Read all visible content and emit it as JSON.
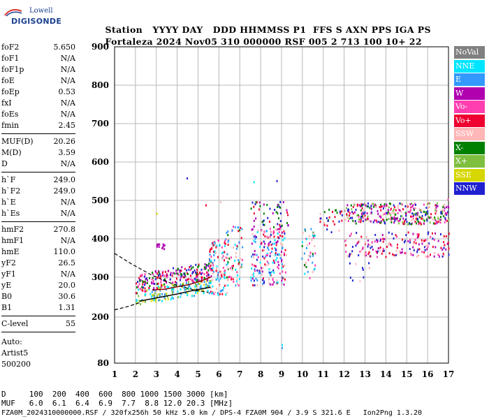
{
  "logo": {
    "line1": "Lowell",
    "line2": "DIGISONDE"
  },
  "header": {
    "row1": [
      "Station",
      "YYYY DAY",
      "DDD",
      "HHMMSS",
      "P1",
      "FFS",
      "S",
      "AXN",
      "PPS",
      "IGA",
      "PS"
    ],
    "row2": [
      "Fortaleza",
      "2024 Nov05",
      "310",
      "000000",
      "RSF",
      "005",
      "2",
      "713",
      "100",
      "10+",
      "22"
    ]
  },
  "params": {
    "group1": [
      {
        "name": "foF2",
        "value": "5.650"
      },
      {
        "name": "foF1",
        "value": "N/A"
      },
      {
        "name": "foF1p",
        "value": "N/A"
      },
      {
        "name": "foE",
        "value": "N/A"
      },
      {
        "name": "foEp",
        "value": "0.53"
      },
      {
        "name": "fxI",
        "value": "N/A"
      },
      {
        "name": "foEs",
        "value": "N/A"
      },
      {
        "name": "fmin",
        "value": "2.45"
      }
    ],
    "group2": [
      {
        "name": "MUF(D)",
        "value": "20.26"
      },
      {
        "name": "M(D)",
        "value": "3.59"
      },
      {
        "name": "D",
        "value": "N/A"
      }
    ],
    "group3": [
      {
        "name": "h`F",
        "value": "249.0"
      },
      {
        "name": "h`F2",
        "value": "249.0"
      },
      {
        "name": "h`E",
        "value": "N/A"
      },
      {
        "name": "h`Es",
        "value": "N/A"
      }
    ],
    "group4": [
      {
        "name": "hmF2",
        "value": "270.8"
      },
      {
        "name": "hmF1",
        "value": "N/A"
      },
      {
        "name": "hmE",
        "value": "110.0"
      },
      {
        "name": "yF2",
        "value": "26.5"
      },
      {
        "name": "yF1",
        "value": "N/A"
      },
      {
        "name": "yE",
        "value": "20.0"
      },
      {
        "name": "B0",
        "value": "30.6"
      },
      {
        "name": "B1",
        "value": "1.31"
      }
    ],
    "group5": [
      {
        "name": "C-level",
        "value": "55"
      }
    ],
    "auto": [
      "Auto:",
      "Artist5",
      "500200"
    ]
  },
  "legend": [
    {
      "label": "NoVal",
      "color": "#808080"
    },
    {
      "label": "NNE",
      "color": "#00e5ff"
    },
    {
      "label": "E",
      "color": "#3399ff"
    },
    {
      "label": "W",
      "color": "#b000b0"
    },
    {
      "label": "Vo-",
      "color": "#ff3fb0"
    },
    {
      "label": "Vo+",
      "color": "#ee0030"
    },
    {
      "label": "SSW",
      "color": "#ffb6b6"
    },
    {
      "label": "X-",
      "color": "#008000"
    },
    {
      "label": "X+",
      "color": "#7fbf3f"
    },
    {
      "label": "SSE",
      "color": "#d6d600"
    },
    {
      "label": "NNW",
      "color": "#2020d0"
    }
  ],
  "chart_data": {
    "type": "scatter",
    "xlim": [
      1,
      17
    ],
    "ylim": [
      80,
      900
    ],
    "x_ticks": [
      1,
      2,
      3,
      4,
      5,
      6,
      7,
      8,
      9,
      10,
      11,
      12,
      13,
      14,
      15,
      16,
      17
    ],
    "y_ticks": [
      80,
      200,
      300,
      400,
      500,
      600,
      700,
      800,
      900
    ],
    "grid": true,
    "clusters": [
      {
        "fmin": 2.0,
        "fmax": 5.6,
        "hmin": 232,
        "hmax": 272,
        "colors": [
          "SSE",
          "E",
          "NNE",
          "X+"
        ],
        "n": 160,
        "rise": 30
      },
      {
        "fmin": 2.0,
        "fmax": 5.7,
        "hmin": 262,
        "hmax": 310,
        "colors": [
          "Vo+",
          "Vo-",
          "X-",
          "W",
          "NNW"
        ],
        "n": 210,
        "rise": 35
      },
      {
        "fmin": 5.5,
        "fmax": 6.4,
        "hmin": 258,
        "hmax": 400,
        "colors": [
          "Vo+",
          "Vo-",
          "SSW",
          "NNE",
          "E"
        ],
        "n": 110,
        "rise": 0
      },
      {
        "fmin": 6.3,
        "fmax": 7.1,
        "hmin": 280,
        "hmax": 440,
        "colors": [
          "Vo+",
          "SSW",
          "E",
          "NNE",
          "Vo-",
          "X-"
        ],
        "n": 70,
        "rise": 0
      },
      {
        "fmin": 7.5,
        "fmax": 9.2,
        "hmin": 282,
        "hmax": 430,
        "colors": [
          "SSW",
          "Vo+",
          "E",
          "NNE",
          "Vo-",
          "W",
          "NNW"
        ],
        "n": 200,
        "rise": 0
      },
      {
        "fmin": 7.5,
        "fmax": 9.3,
        "hmin": 430,
        "hmax": 500,
        "colors": [
          "NNW",
          "Vo+",
          "W",
          "X-"
        ],
        "n": 50,
        "rise": 0
      },
      {
        "fmin": 9.9,
        "fmax": 10.6,
        "hmin": 300,
        "hmax": 430,
        "colors": [
          "SSW",
          "X-",
          "E",
          "NNE",
          "Vo-"
        ],
        "n": 45,
        "rise": 0
      },
      {
        "fmin": 10.7,
        "fmax": 11.9,
        "hmin": 415,
        "hmax": 480,
        "colors": [
          "NNW",
          "Vo+",
          "SSW",
          "X-"
        ],
        "n": 30,
        "rise": 0
      },
      {
        "fmin": 12.0,
        "fmax": 17.0,
        "hmin": 440,
        "hmax": 495,
        "colors": [
          "X-",
          "X+",
          "Vo+",
          "Vo-",
          "SSW",
          "W",
          "NNW"
        ],
        "n": 340,
        "rise": 0
      },
      {
        "fmin": 12.0,
        "fmax": 17.0,
        "hmin": 355,
        "hmax": 420,
        "colors": [
          "NNW",
          "Vo-",
          "SSW",
          "W",
          "Vo+"
        ],
        "n": 180,
        "rise": 0
      },
      {
        "fmin": 3.0,
        "fmax": 3.4,
        "hmin": 375,
        "hmax": 390,
        "colors": [
          "W"
        ],
        "n": 14,
        "rise": 0
      },
      {
        "fmin": 12.2,
        "fmax": 13.2,
        "hmin": 290,
        "hmax": 340,
        "colors": [
          "NNW",
          "SSW"
        ],
        "n": 10,
        "rise": 0
      }
    ],
    "outliers": [
      {
        "f": 4.45,
        "h": 560,
        "c": "NNW"
      },
      {
        "f": 7.65,
        "h": 550,
        "c": "NNE"
      },
      {
        "f": 8.75,
        "h": 553,
        "c": "NNW"
      },
      {
        "f": 3.0,
        "h": 468,
        "c": "SSE"
      },
      {
        "f": 5.35,
        "h": 490,
        "c": "Vo+"
      },
      {
        "f": 6.05,
        "h": 498,
        "c": "SSW"
      },
      {
        "f": 9.0,
        "h": 130,
        "c": "NNE"
      },
      {
        "f": 9.0,
        "h": 122,
        "c": "E"
      },
      {
        "f": 16.95,
        "h": 505,
        "c": "Vo-"
      },
      {
        "f": 9.05,
        "h": 300,
        "c": "NoVal"
      }
    ],
    "trace_solid": {
      "f": [
        2.2,
        2.8,
        3.4,
        4.0,
        4.6,
        5.2,
        5.6
      ],
      "h": [
        240,
        246,
        252,
        258,
        265,
        271,
        275
      ]
    },
    "trace_dashed_upper": {
      "f": [
        1.0,
        1.8,
        2.8,
        3.8,
        4.8,
        5.5
      ],
      "h": [
        362,
        335,
        305,
        283,
        268,
        262
      ]
    },
    "trace_dashed_lower": {
      "f": [
        1.0,
        1.6,
        2.2
      ],
      "h": [
        218,
        226,
        236
      ]
    },
    "trace_red": {
      "f": [
        2.8,
        3.4,
        4.0,
        4.6,
        5.2,
        5.6
      ],
      "h": [
        268,
        270,
        276,
        282,
        292,
        300
      ]
    }
  },
  "footer": {
    "d_row": "D     100  200  400  600  800 1000 1500 3000 [km]",
    "muf_row": "MUF   6.0  6.1  6.4  6.9  7.7  8.8 12.0 20.3 [MHz]",
    "info": "FZA0M_2024310000000.RSF / 320fx256h 50 kHz 5.0 km / DPS-4 FZA0M 904 / 3.9 S 321.6 E   Ion2Png 1.3.20"
  }
}
